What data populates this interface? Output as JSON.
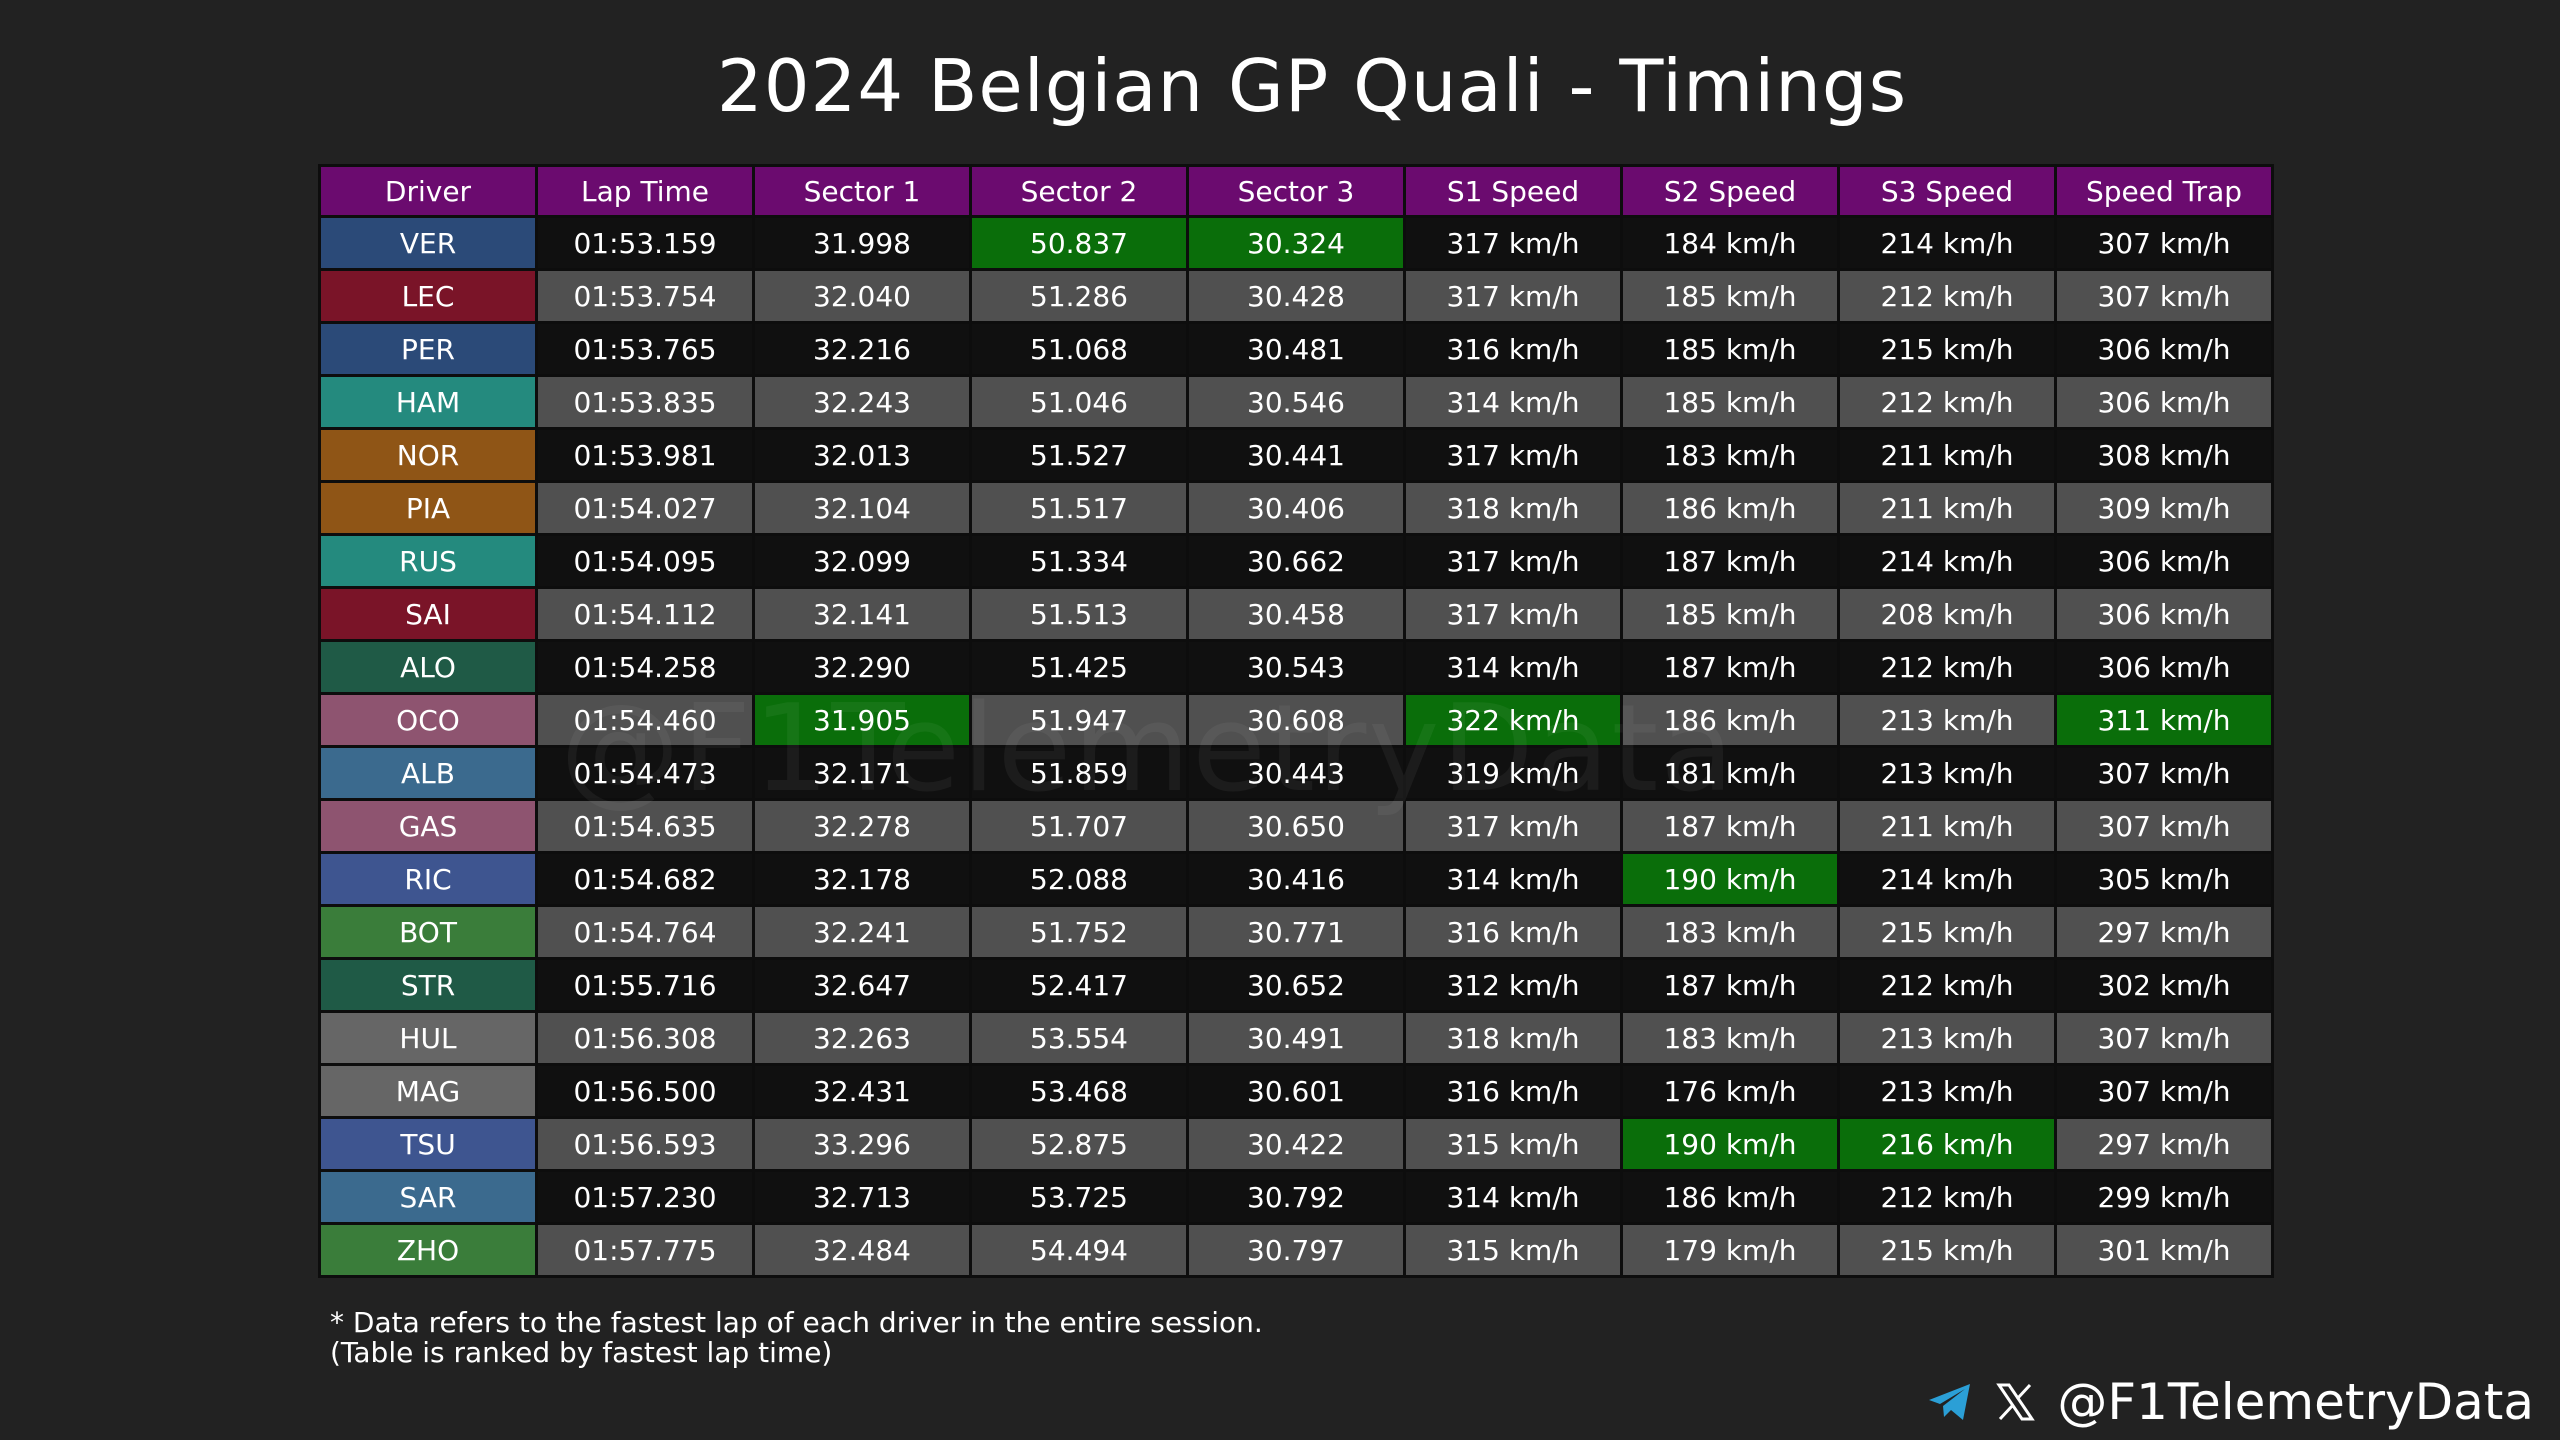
{
  "title": "2024 Belgian GP Quali - Timings",
  "watermark": "@F1TelemetryData",
  "footnote_line1": "* Data refers to the fastest lap of each driver in the entire session.",
  "footnote_line2": "(Table is ranked by fastest lap time)",
  "social": {
    "icons": [
      "telegram-icon",
      "x-icon"
    ],
    "handle": "@F1TelemetryData"
  },
  "colors": {
    "header": "#6b0b6f",
    "best": "#0a6e0a",
    "row_dark": "#101010",
    "row_light": "#505050"
  },
  "chart_data": {
    "type": "table",
    "title": "2024 Belgian GP Quali - Timings",
    "columns": [
      "Driver",
      "Lap Time",
      "Sector 1",
      "Sector 2",
      "Sector 3",
      "S1 Speed",
      "S2 Speed",
      "S3 Speed",
      "Speed Trap"
    ],
    "rows": [
      {
        "driver": "VER",
        "color": "#2b4a78",
        "cells": [
          "01:53.159",
          "31.998",
          "50.837",
          "30.324",
          "317 km/h",
          "184 km/h",
          "214 km/h",
          "307 km/h"
        ],
        "best": [
          2,
          3
        ]
      },
      {
        "driver": "LEC",
        "color": "#7a1428",
        "cells": [
          "01:53.754",
          "32.040",
          "51.286",
          "30.428",
          "317 km/h",
          "185 km/h",
          "212 km/h",
          "307 km/h"
        ],
        "best": []
      },
      {
        "driver": "PER",
        "color": "#2b4a78",
        "cells": [
          "01:53.765",
          "32.216",
          "51.068",
          "30.481",
          "316 km/h",
          "185 km/h",
          "215 km/h",
          "306 km/h"
        ],
        "best": []
      },
      {
        "driver": "HAM",
        "color": "#248a7e",
        "cells": [
          "01:53.835",
          "32.243",
          "51.046",
          "30.546",
          "314 km/h",
          "185 km/h",
          "212 km/h",
          "306 km/h"
        ],
        "best": []
      },
      {
        "driver": "NOR",
        "color": "#8f5516",
        "cells": [
          "01:53.981",
          "32.013",
          "51.527",
          "30.441",
          "317 km/h",
          "183 km/h",
          "211 km/h",
          "308 km/h"
        ],
        "best": []
      },
      {
        "driver": "PIA",
        "color": "#8f5516",
        "cells": [
          "01:54.027",
          "32.104",
          "51.517",
          "30.406",
          "318 km/h",
          "186 km/h",
          "211 km/h",
          "309 km/h"
        ],
        "best": []
      },
      {
        "driver": "RUS",
        "color": "#248a7e",
        "cells": [
          "01:54.095",
          "32.099",
          "51.334",
          "30.662",
          "317 km/h",
          "187 km/h",
          "214 km/h",
          "306 km/h"
        ],
        "best": []
      },
      {
        "driver": "SAI",
        "color": "#7a1428",
        "cells": [
          "01:54.112",
          "32.141",
          "51.513",
          "30.458",
          "317 km/h",
          "185 km/h",
          "208 km/h",
          "306 km/h"
        ],
        "best": []
      },
      {
        "driver": "ALO",
        "color": "#1f5a46",
        "cells": [
          "01:54.258",
          "32.290",
          "51.425",
          "30.543",
          "314 km/h",
          "187 km/h",
          "212 km/h",
          "306 km/h"
        ],
        "best": []
      },
      {
        "driver": "OCO",
        "color": "#8e5470",
        "cells": [
          "01:54.460",
          "31.905",
          "51.947",
          "30.608",
          "322 km/h",
          "186 km/h",
          "213 km/h",
          "311 km/h"
        ],
        "best": [
          1,
          4,
          7
        ]
      },
      {
        "driver": "ALB",
        "color": "#3b6a8e",
        "cells": [
          "01:54.473",
          "32.171",
          "51.859",
          "30.443",
          "319 km/h",
          "181 km/h",
          "213 km/h",
          "307 km/h"
        ],
        "best": []
      },
      {
        "driver": "GAS",
        "color": "#8e5470",
        "cells": [
          "01:54.635",
          "32.278",
          "51.707",
          "30.650",
          "317 km/h",
          "187 km/h",
          "211 km/h",
          "307 km/h"
        ],
        "best": []
      },
      {
        "driver": "RIC",
        "color": "#3e5590",
        "cells": [
          "01:54.682",
          "32.178",
          "52.088",
          "30.416",
          "314 km/h",
          "190 km/h",
          "214 km/h",
          "305 km/h"
        ],
        "best": [
          5
        ]
      },
      {
        "driver": "BOT",
        "color": "#3a7d3a",
        "cells": [
          "01:54.764",
          "32.241",
          "51.752",
          "30.771",
          "316 km/h",
          "183 km/h",
          "215 km/h",
          "297 km/h"
        ],
        "best": []
      },
      {
        "driver": "STR",
        "color": "#1f5a46",
        "cells": [
          "01:55.716",
          "32.647",
          "52.417",
          "30.652",
          "312 km/h",
          "187 km/h",
          "212 km/h",
          "302 km/h"
        ],
        "best": []
      },
      {
        "driver": "HUL",
        "color": "#666666",
        "cells": [
          "01:56.308",
          "32.263",
          "53.554",
          "30.491",
          "318 km/h",
          "183 km/h",
          "213 km/h",
          "307 km/h"
        ],
        "best": []
      },
      {
        "driver": "MAG",
        "color": "#666666",
        "cells": [
          "01:56.500",
          "32.431",
          "53.468",
          "30.601",
          "316 km/h",
          "176 km/h",
          "213 km/h",
          "307 km/h"
        ],
        "best": []
      },
      {
        "driver": "TSU",
        "color": "#3e5590",
        "cells": [
          "01:56.593",
          "33.296",
          "52.875",
          "30.422",
          "315 km/h",
          "190 km/h",
          "216 km/h",
          "297 km/h"
        ],
        "best": [
          5,
          6
        ]
      },
      {
        "driver": "SAR",
        "color": "#3b6a8e",
        "cells": [
          "01:57.230",
          "32.713",
          "53.725",
          "30.792",
          "314 km/h",
          "186 km/h",
          "212 km/h",
          "299 km/h"
        ],
        "best": []
      },
      {
        "driver": "ZHO",
        "color": "#3a7d3a",
        "cells": [
          "01:57.775",
          "32.484",
          "54.494",
          "30.797",
          "315 km/h",
          "179 km/h",
          "215 km/h",
          "301 km/h"
        ],
        "best": []
      }
    ]
  }
}
